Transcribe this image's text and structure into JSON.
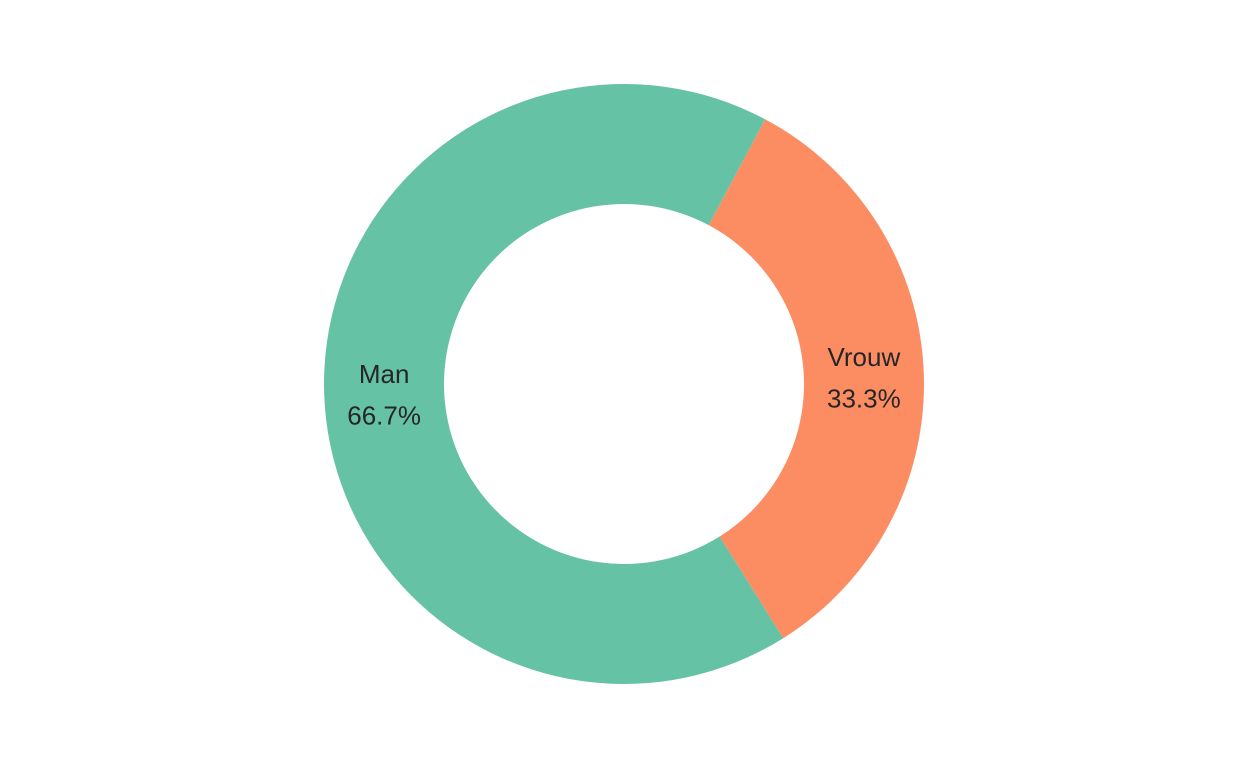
{
  "chart_data": {
    "type": "pie",
    "donut": true,
    "title": "",
    "categories": [
      "Man",
      "Vrouw"
    ],
    "values": [
      66.7,
      33.3
    ],
    "labels": [
      "66.7%",
      "33.3%"
    ],
    "colors": [
      "#66c2a5",
      "#fc8d62"
    ],
    "legend": "none"
  }
}
